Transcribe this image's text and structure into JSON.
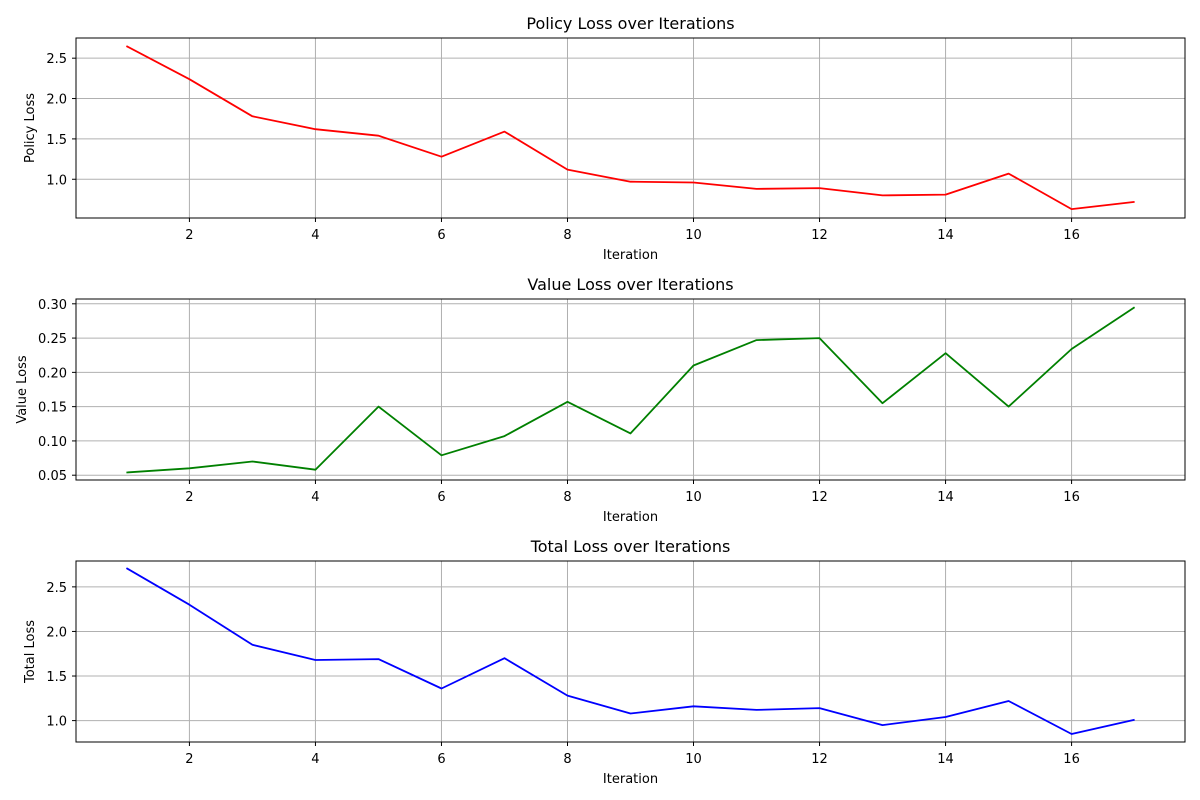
{
  "figure": {
    "background": "#ffffff",
    "grid_color": "#b0b0b0",
    "axis_color": "#000000"
  },
  "chart_data": [
    {
      "type": "line",
      "title": "Policy Loss over Iterations",
      "xlabel": "Iteration",
      "ylabel": "Policy Loss",
      "grid": true,
      "xlim": [
        0.2,
        17.8
      ],
      "ylim": [
        0.52,
        2.75
      ],
      "xticks": [
        2,
        4,
        6,
        8,
        10,
        12,
        14,
        16
      ],
      "yticks": [
        1.0,
        1.5,
        2.0,
        2.5
      ],
      "ytick_labels": [
        "1.0",
        "1.5",
        "2.0",
        "2.5"
      ],
      "series": [
        {
          "color": "#ff0000",
          "x": [
            1,
            2,
            3,
            4,
            5,
            6,
            7,
            8,
            9,
            10,
            11,
            12,
            13,
            14,
            15,
            16,
            17
          ],
          "y": [
            2.65,
            2.24,
            1.78,
            1.62,
            1.54,
            1.28,
            1.59,
            1.12,
            0.97,
            0.96,
            0.88,
            0.89,
            0.8,
            0.81,
            1.07,
            0.63,
            0.72
          ]
        }
      ]
    },
    {
      "type": "line",
      "title": "Value Loss over Iterations",
      "xlabel": "Iteration",
      "ylabel": "Value Loss",
      "grid": true,
      "xlim": [
        0.2,
        17.8
      ],
      "ylim": [
        0.043,
        0.307
      ],
      "xticks": [
        2,
        4,
        6,
        8,
        10,
        12,
        14,
        16
      ],
      "yticks": [
        0.05,
        0.1,
        0.15,
        0.2,
        0.25,
        0.3
      ],
      "ytick_labels": [
        "0.05",
        "0.10",
        "0.15",
        "0.20",
        "0.25",
        "0.30"
      ],
      "series": [
        {
          "color": "#008000",
          "x": [
            1,
            2,
            3,
            4,
            5,
            6,
            7,
            8,
            9,
            10,
            11,
            12,
            13,
            14,
            15,
            16,
            17
          ],
          "y": [
            0.054,
            0.06,
            0.07,
            0.058,
            0.15,
            0.079,
            0.107,
            0.157,
            0.111,
            0.21,
            0.247,
            0.25,
            0.155,
            0.228,
            0.15,
            0.234,
            0.295
          ]
        }
      ]
    },
    {
      "type": "line",
      "title": "Total Loss over Iterations",
      "xlabel": "Iteration",
      "ylabel": "Total Loss",
      "grid": true,
      "xlim": [
        0.2,
        17.8
      ],
      "ylim": [
        0.76,
        2.79
      ],
      "xticks": [
        2,
        4,
        6,
        8,
        10,
        12,
        14,
        16
      ],
      "yticks": [
        1.0,
        1.5,
        2.0,
        2.5
      ],
      "ytick_labels": [
        "1.0",
        "1.5",
        "2.0",
        "2.5"
      ],
      "series": [
        {
          "color": "#0000ff",
          "x": [
            1,
            2,
            3,
            4,
            5,
            6,
            7,
            8,
            9,
            10,
            11,
            12,
            13,
            14,
            15,
            16,
            17
          ],
          "y": [
            2.71,
            2.3,
            1.85,
            1.68,
            1.69,
            1.36,
            1.7,
            1.28,
            1.08,
            1.16,
            1.12,
            1.14,
            0.95,
            1.04,
            1.22,
            0.85,
            1.01
          ]
        }
      ]
    }
  ]
}
